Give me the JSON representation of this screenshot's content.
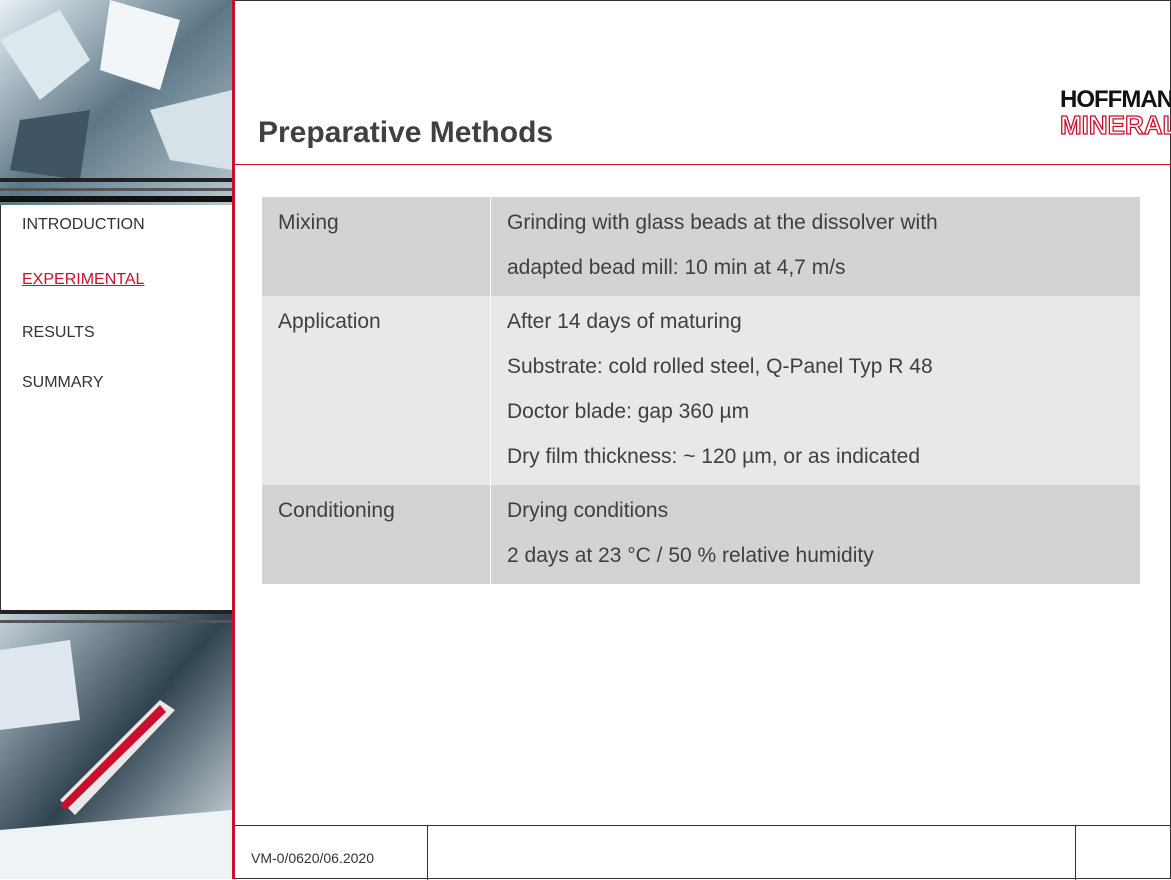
{
  "header": {
    "title": "Preparative Methods",
    "logo": {
      "line1": "HOFFMANN",
      "line2": "MINERAL"
    }
  },
  "nav": [
    {
      "label": "INTRODUCTION",
      "active": false
    },
    {
      "label": "EXPERIMENTAL",
      "active": true
    },
    {
      "label": "RESULTS",
      "active": false
    },
    {
      "label": "SUMMARY",
      "active": false
    }
  ],
  "table": {
    "rows": [
      {
        "label": "Mixing",
        "lines": [
          "Grinding with glass beads at the dissolver with",
          "adapted bead mill: 10 min at 4,7 m/s"
        ]
      },
      {
        "label": "Application",
        "lines": [
          "After 14 days of maturing",
          "Substrate: cold rolled steel, Q-Panel Typ R 48",
          "Doctor blade: gap 360 µm",
          "Dry film thickness: ~ 120 µm, or as indicated"
        ]
      },
      {
        "label": "Conditioning",
        "lines": [
          "Drying conditions",
          "2 days at 23 °C / 50 % relative humidity"
        ]
      }
    ]
  },
  "footer": {
    "code": "VM-0/0620/06.2020"
  }
}
